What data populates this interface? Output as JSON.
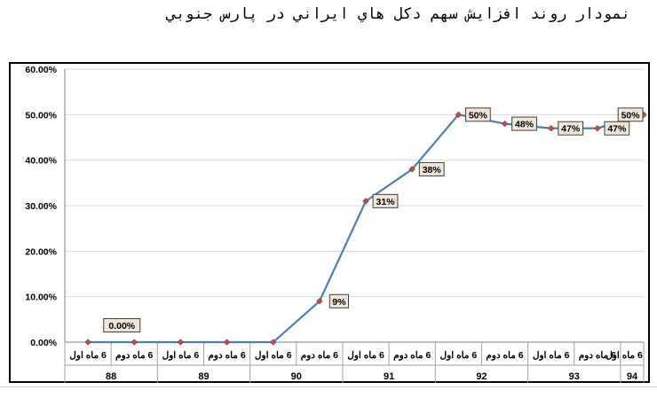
{
  "title": "نمودار روند افزايش سهم دكل هاي ايراني در پارس جنوبي",
  "chart_data": {
    "type": "line",
    "title": "نمودار روند افزايش سهم دكل هاي ايراني در پارس جنوبي",
    "x": [
      {
        "sub": "6 ماه اول",
        "year": "88"
      },
      {
        "sub": "6 ماه دوم",
        "year": "88"
      },
      {
        "sub": "6 ماه اول",
        "year": "89"
      },
      {
        "sub": "6 ماه دوم",
        "year": "89"
      },
      {
        "sub": "6 ماه اول",
        "year": "90"
      },
      {
        "sub": "6 ماه دوم",
        "year": "90"
      },
      {
        "sub": "6 ماه اول",
        "year": "91"
      },
      {
        "sub": "6 ماه دوم",
        "year": "91"
      },
      {
        "sub": "6 ماه اول",
        "year": "92"
      },
      {
        "sub": "6 ماه دوم",
        "year": "92"
      },
      {
        "sub": "6 ماه اول",
        "year": "93"
      },
      {
        "sub": "6 ماه دوم",
        "year": "93"
      },
      {
        "sub": "6 ماه اول",
        "year": "94"
      }
    ],
    "years": [
      "88",
      "89",
      "90",
      "91",
      "92",
      "93",
      "94"
    ],
    "values": [
      0,
      0,
      0,
      0,
      0,
      9,
      31,
      38,
      50,
      48,
      47,
      47,
      50
    ],
    "data_labels": [
      {
        "index": 1,
        "text": "0.00%"
      },
      {
        "index": 5,
        "text": "9%"
      },
      {
        "index": 6,
        "text": "31%"
      },
      {
        "index": 7,
        "text": "38%"
      },
      {
        "index": 8,
        "text": "50%"
      },
      {
        "index": 9,
        "text": "48%"
      },
      {
        "index": 10,
        "text": "47%"
      },
      {
        "index": 11,
        "text": "47%"
      },
      {
        "index": 12,
        "text": "50%"
      }
    ],
    "yticks": [
      "0.00%",
      "10.00%",
      "20.00%",
      "30.00%",
      "40.00%",
      "50.00%",
      "60.00%"
    ],
    "ylim": [
      0,
      60
    ],
    "grid": true,
    "colors": {
      "line": "#4a7ebb",
      "marker": "#c0504d",
      "label_bg": "#f2e6d9",
      "grid": "#d9d9d9"
    }
  }
}
